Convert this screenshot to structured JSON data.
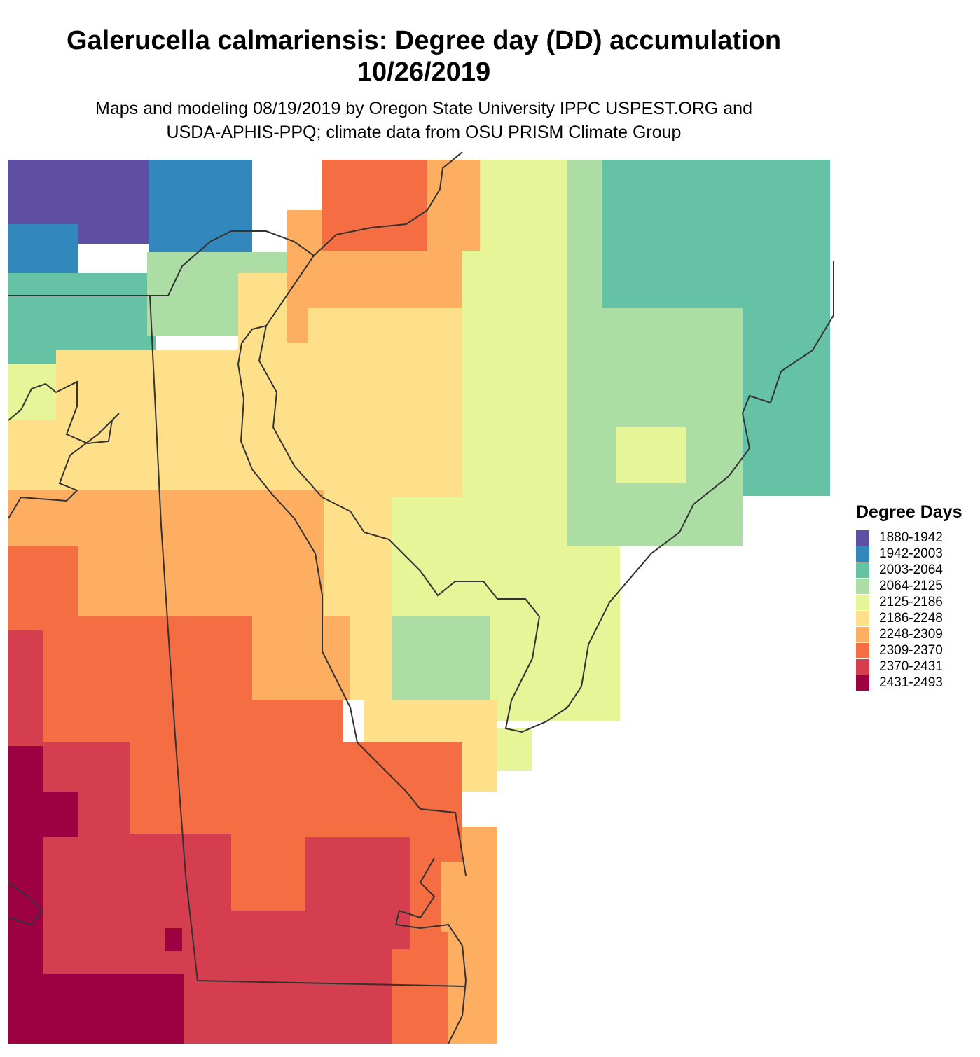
{
  "title": {
    "line1": "Galerucella calmariensis: Degree day (DD) accumulation",
    "line2": "10/26/2019"
  },
  "subtitle": {
    "line1": "Maps and modeling 08/19/2019 by Oregon State University IPPC USPEST.ORG and",
    "line2": "USDA-APHIS-PPQ; climate data from OSU PRISM Climate Group"
  },
  "legend": {
    "title": "Degree Days",
    "items": [
      {
        "label": "1880-1942",
        "color": "#5E4FA2"
      },
      {
        "label": "1942-2003",
        "color": "#3288BD"
      },
      {
        "label": "2003-2064",
        "color": "#66C2A5"
      },
      {
        "label": "2064-2125",
        "color": "#ABDDA4"
      },
      {
        "label": "2125-2186",
        "color": "#E6F598"
      },
      {
        "label": "2186-2248",
        "color": "#FEE08B"
      },
      {
        "label": "2248-2309",
        "color": "#FDAE61"
      },
      {
        "label": "2309-2370",
        "color": "#F46D43"
      },
      {
        "label": "2370-2431",
        "color": "#D53E4F"
      },
      {
        "label": "2431-2493",
        "color": "#9E0142"
      }
    ]
  }
}
